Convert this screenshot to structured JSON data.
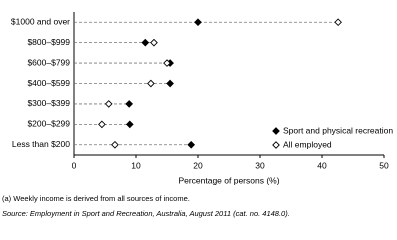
{
  "chart_data": {
    "type": "dot",
    "categories": [
      "$1000 and over",
      "$800–$999",
      "$600–$799",
      "$400–$599",
      "$300–$399",
      "$200–$299",
      "Less than $200"
    ],
    "series": [
      {
        "name": "Sport and physical recreation",
        "color": "#000000",
        "marker": "filled",
        "values": [
          20.0,
          11.5,
          15.5,
          15.5,
          8.9,
          9.0,
          18.9
        ]
      },
      {
        "name": "All employed",
        "color": "#000000",
        "marker": "open",
        "values": [
          42.6,
          12.9,
          15.0,
          12.4,
          5.6,
          4.5,
          6.6
        ]
      }
    ],
    "xlabel": "Percentage of persons (%)",
    "xlim": [
      0,
      50
    ],
    "xticks": [
      0,
      10,
      20,
      30,
      40,
      50
    ],
    "legend": "lower right",
    "footnote": "(a) Weekly income is derived from all sources of income.",
    "source": "Source: Employment in Sport and Recreation, Australia, August 2011 (cat. no. 4148.0)."
  }
}
